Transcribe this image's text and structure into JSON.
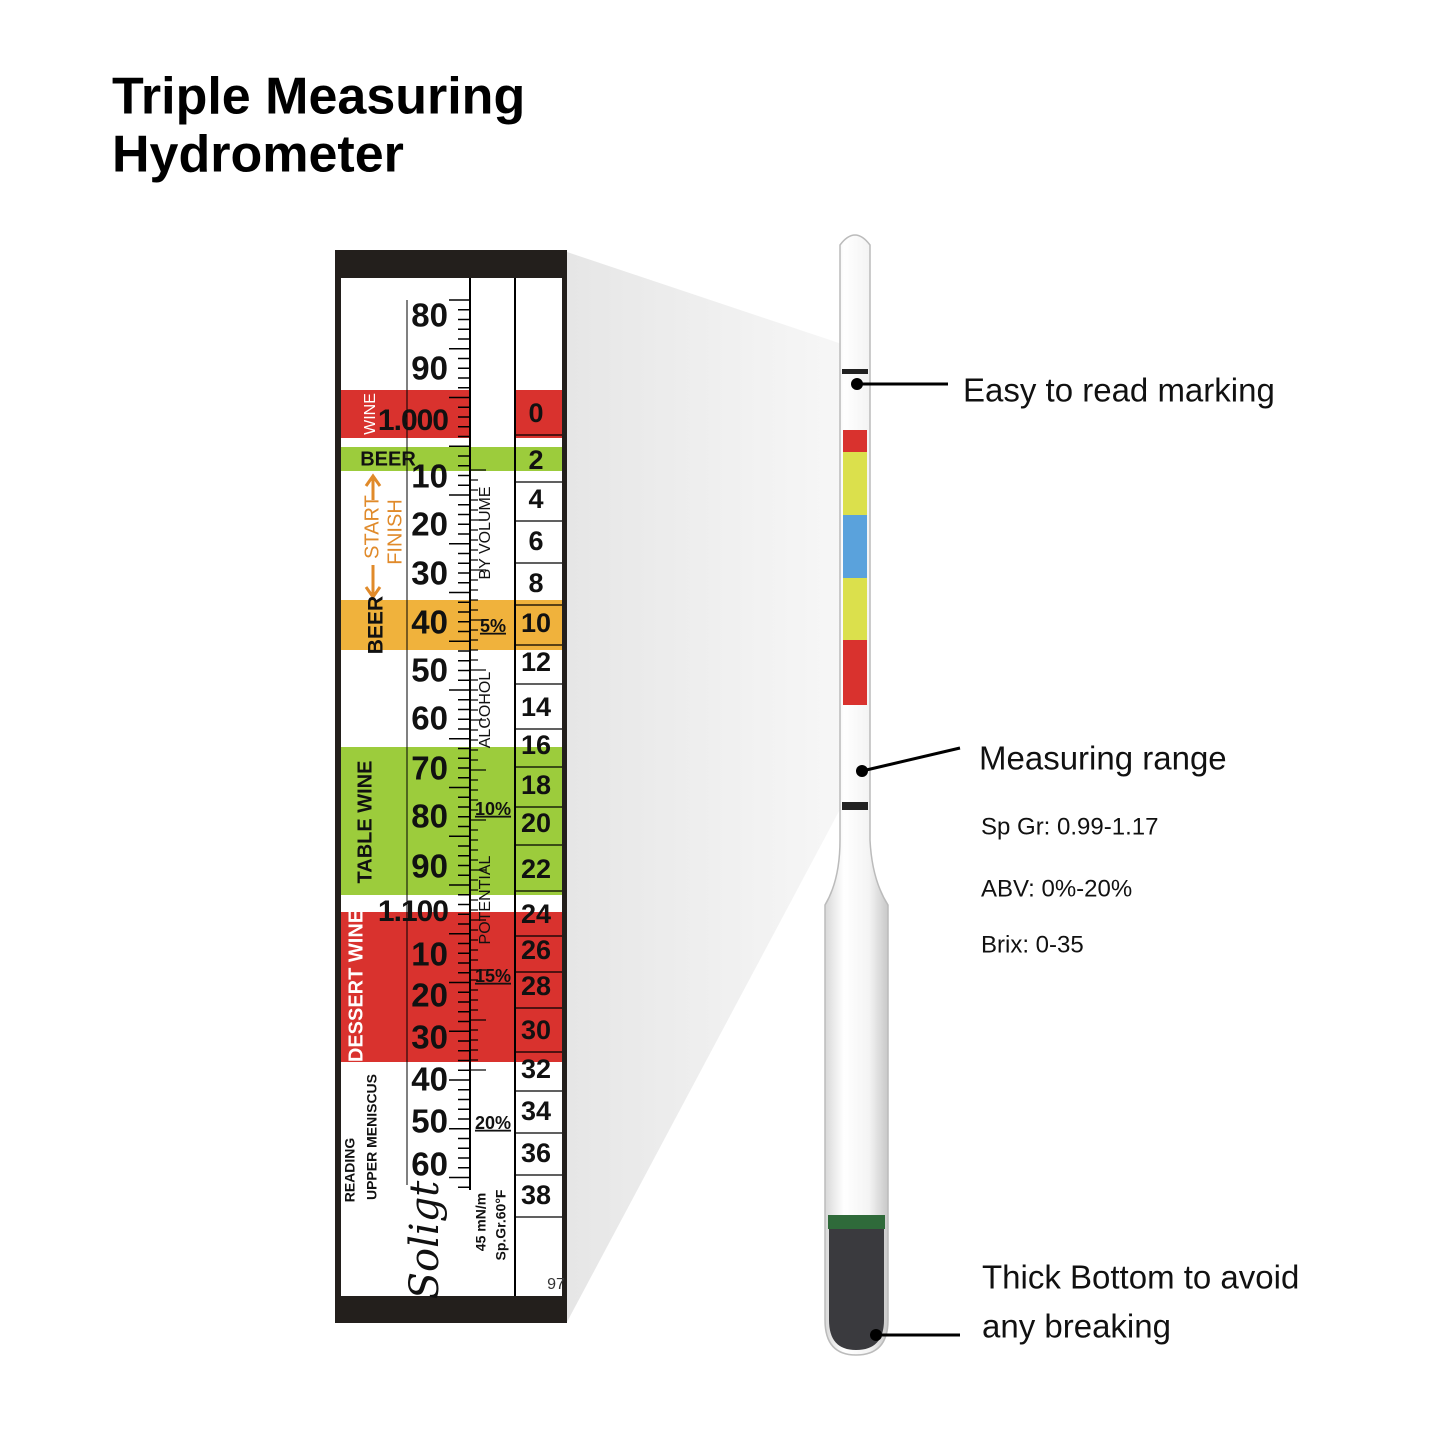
{
  "header": {
    "title": [
      "Triple Measuring",
      "Hydrometer"
    ]
  },
  "scale": {
    "gravity_labels": [
      "80",
      "90",
      "1.000",
      "10",
      "20",
      "30",
      "40",
      "50",
      "60",
      "70",
      "80",
      "90",
      "1.100",
      "10",
      "20",
      "30",
      "40",
      "50",
      "60"
    ],
    "brix_labels": [
      "0",
      "2",
      "4",
      "6",
      "8",
      "10",
      "12",
      "14",
      "16",
      "18",
      "20",
      "22",
      "24",
      "26",
      "28",
      "30",
      "32",
      "34",
      "36",
      "38"
    ],
    "band_labels": {
      "wine": "WINE",
      "beer_top": "BEER",
      "start": "START",
      "finish": "FINISH",
      "beer": "BEER",
      "table_wine": "TABLE WINE",
      "dessert_wine": "DESSERT WINE"
    },
    "alcohol": {
      "by_volume": "BY VOLUME",
      "alcohol": "ALCOHOL",
      "potential": "POTENTIAL",
      "percent_marks": [
        "5%",
        "10%",
        "15%",
        "20%"
      ]
    },
    "reading": [
      "READING",
      "UPPER MENISCUS"
    ],
    "brand": "Soligt",
    "spec": [
      "45 mN/m",
      "Sp.Gr.60°F"
    ],
    "code": "97"
  },
  "callouts": [
    {
      "label": "Easy to read marking"
    },
    {
      "label": "Measuring range",
      "details": [
        "Sp Gr: 0.99-1.17",
        "ABV: 0%-20%",
        "Brix: 0-35"
      ]
    },
    {
      "label": [
        "Thick Bottom to avoid",
        "any breaking"
      ]
    }
  ]
}
